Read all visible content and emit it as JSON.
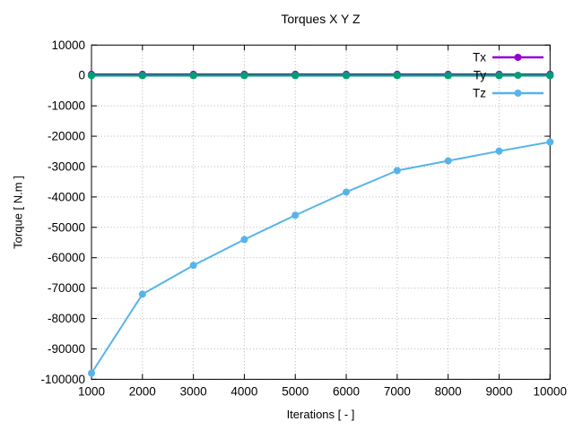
{
  "window": {
    "background": "#ffffff",
    "text_color": "#000000",
    "grid_color": "#b3b3b3",
    "border_color": "#000000"
  },
  "chart_data": {
    "type": "line",
    "title": "Torques X Y Z",
    "xlabel": "Iterations [ - ]",
    "ylabel": "Torque [ N.m ]",
    "x": [
      1000,
      2000,
      3000,
      4000,
      5000,
      6000,
      7000,
      8000,
      9000,
      10000
    ],
    "xlim": [
      1000,
      10000
    ],
    "ylim": [
      -100000,
      10000
    ],
    "xticks": [
      1000,
      2000,
      3000,
      4000,
      5000,
      6000,
      7000,
      8000,
      9000,
      10000
    ],
    "yticks": [
      10000,
      0,
      -10000,
      -20000,
      -30000,
      -40000,
      -50000,
      -60000,
      -70000,
      -80000,
      -90000,
      -100000
    ],
    "grid": "dotted",
    "legend_position": "top-right-inside",
    "series": [
      {
        "name": "Tx",
        "color": "#9400d3",
        "marker": "circle",
        "values": [
          0,
          0,
          0,
          0,
          0,
          0,
          0,
          0,
          0,
          0
        ]
      },
      {
        "name": "Ty",
        "color": "#009e73",
        "marker": "circle",
        "values": [
          0,
          0,
          0,
          0,
          0,
          0,
          0,
          0,
          0,
          0
        ]
      },
      {
        "name": "Tz",
        "color": "#56b4e9",
        "marker": "circle",
        "values": [
          -98000,
          -72000,
          -62500,
          -54000,
          -46000,
          -38400,
          -31300,
          -28100,
          -24900,
          -21900
        ]
      }
    ]
  }
}
